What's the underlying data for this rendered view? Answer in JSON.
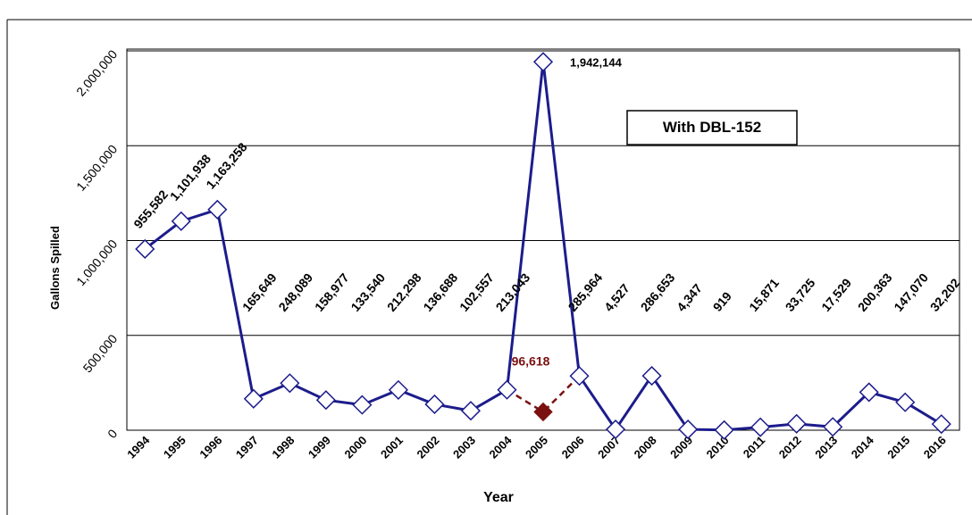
{
  "chart_data": {
    "type": "line",
    "y_label": "Gallons Spilled",
    "x_label": "Year",
    "annotation": "With DBL-152",
    "categories": [
      "1994",
      "1995",
      "1996",
      "1997",
      "1998",
      "1999",
      "2000",
      "2001",
      "2002",
      "2003",
      "2004",
      "2005",
      "2006",
      "2007",
      "2008",
      "2009",
      "2010",
      "2011",
      "2012",
      "2013",
      "2014",
      "2015",
      "2016"
    ],
    "series": [
      {
        "color": "#1c1c8c",
        "values": [
          955582,
          1101938,
          1163258,
          165649,
          248089,
          158977,
          133540,
          212298,
          136688,
          102557,
          213043,
          1942144,
          285964,
          4527,
          286653,
          4347,
          919,
          15871,
          33725,
          17529,
          200363,
          147070,
          32202
        ],
        "value_labels": [
          "955,582",
          "1,101,938",
          "1,163,258",
          "165,649",
          "248,089",
          "158,977",
          "133,540",
          "212,298",
          "136,688",
          "102,557",
          "213,043",
          "1,942,144",
          "285,964",
          "4,527",
          "286,653",
          "4,347",
          "919",
          "15,871",
          "33,725",
          "17,529",
          "200,363",
          "147,070",
          "32,202"
        ]
      },
      {
        "color": "#7b1010",
        "values": [
          null,
          null,
          null,
          null,
          null,
          null,
          null,
          null,
          null,
          null,
          null,
          96618,
          null,
          null,
          null,
          null,
          null,
          null,
          null,
          null,
          null,
          null,
          null
        ],
        "value_labels": [
          null,
          null,
          null,
          null,
          null,
          null,
          null,
          null,
          null,
          null,
          null,
          "96,618",
          null,
          null,
          null,
          null,
          null,
          null,
          null,
          null,
          null,
          null,
          null
        ]
      }
    ],
    "ylim": [
      0,
      2000000
    ],
    "yticks": [
      0,
      {
        "value": 500000,
        "label": "500,000"
      },
      {
        "value": 1000000,
        "label": "1,000,000"
      },
      {
        "value": 1500000,
        "label": "1,500,000"
      },
      {
        "value": 2000000,
        "label": "2,000,000"
      }
    ],
    "grid": true
  }
}
